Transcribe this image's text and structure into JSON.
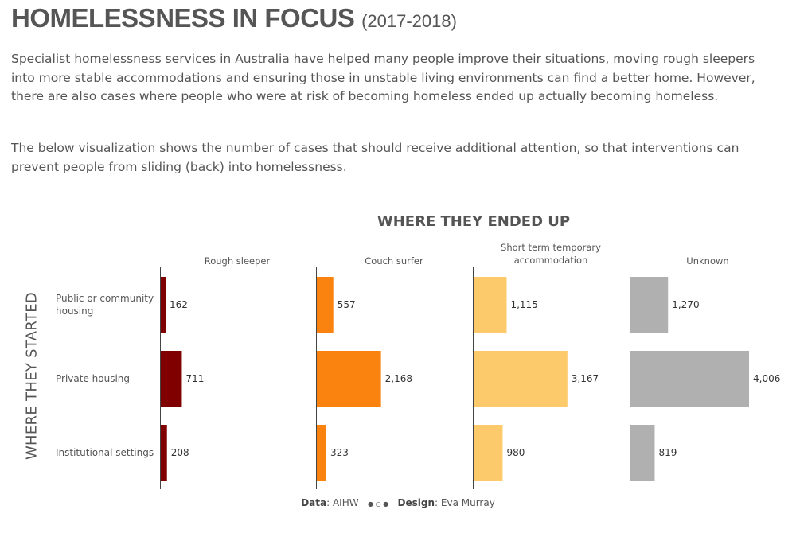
{
  "header": {
    "title": "HOMELESSNESS IN FOCUS",
    "subtitle": "(2017-2018)"
  },
  "intro": {
    "p1": "Specialist homelessness services in Australia have helped many people improve their situations, moving rough sleepers into more stable accommodations and ensuring those in unstable living environments can find a better home. However, there are also cases where people who were at risk of becoming homeless ended up actually becoming homeless.",
    "p2": "The below visualization shows the number of cases that should receive additional attention, so that interventions can prevent people from sliding (back) into homelessness."
  },
  "chart_data": {
    "type": "bar",
    "title": "WHERE THEY ENDED UP",
    "ylabel": "WHERE THEY STARTED",
    "categories": [
      "Public or community housing",
      "Private housing",
      "Institutional settings"
    ],
    "series": [
      {
        "name": "Rough sleeper",
        "color": "#800000",
        "values": [
          162,
          711,
          208
        ],
        "labels": [
          "162",
          "711",
          "208"
        ]
      },
      {
        "name": "Couch surfer",
        "color": "#fa820e",
        "values": [
          557,
          2168,
          323
        ],
        "labels": [
          "557",
          "2,168",
          "323"
        ]
      },
      {
        "name": "Short term temporary accommodation",
        "color": "#fcca6a",
        "values": [
          1115,
          3167,
          980
        ],
        "labels": [
          "1,115",
          "3,167",
          "980"
        ]
      },
      {
        "name": "Unknown",
        "color": "#b0b0b0",
        "values": [
          1270,
          4006,
          819
        ],
        "labels": [
          "1,270",
          "4,006",
          "819"
        ]
      }
    ]
  },
  "footer": {
    "data_label": "Data",
    "data_value": ": AIHW",
    "separator": "● ○ ●",
    "design_label": "Design",
    "design_value": ": Eva Murray"
  }
}
